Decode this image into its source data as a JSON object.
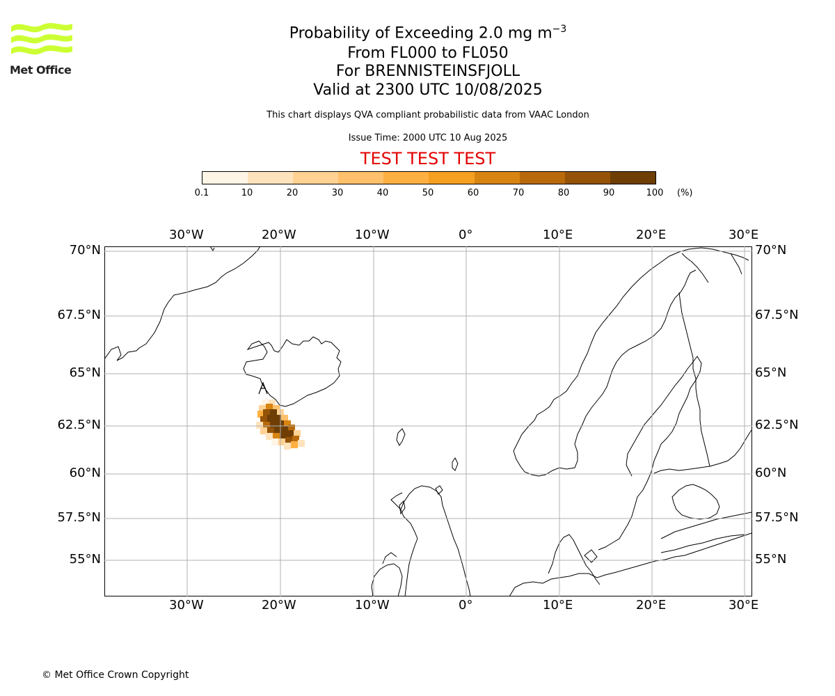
{
  "header": {
    "title_main": "Probability of Exceeding 2.0 mg m",
    "title_exp": "−3",
    "levels": "From FL000 to FL050",
    "volcano": "For BRENNISTEINSFJOLL",
    "valid": "Valid at 2300 UTC 10/08/2025",
    "description": "This chart displays QVA compliant probabilistic data from VAAC London",
    "issue_time": "Issue Time: 2000 UTC 10 Aug 2025",
    "test_banner": "TEST TEST TEST"
  },
  "logo": {
    "text": "Met Office",
    "color": "#ccff33"
  },
  "colorbar": {
    "ticks": [
      "0.1",
      "10",
      "20",
      "30",
      "40",
      "50",
      "60",
      "70",
      "80",
      "90",
      "100"
    ],
    "unit": "(%)",
    "colors": [
      "#fff5e6",
      "#ffe3bd",
      "#ffd294",
      "#ffc06b",
      "#ffb042",
      "#f5a020",
      "#d88410",
      "#b8690a",
      "#955307",
      "#6e3e05"
    ]
  },
  "map": {
    "lon_labels": [
      "30°W",
      "20°W",
      "10°W",
      "0°",
      "10°E",
      "20°E",
      "30°E"
    ],
    "lat_labels": [
      "70°N",
      "67.5°N",
      "65°N",
      "62.5°N",
      "60°N",
      "57.5°N",
      "55°N"
    ]
  },
  "footer": {
    "copyright": "© Met Office Crown Copyright"
  }
}
